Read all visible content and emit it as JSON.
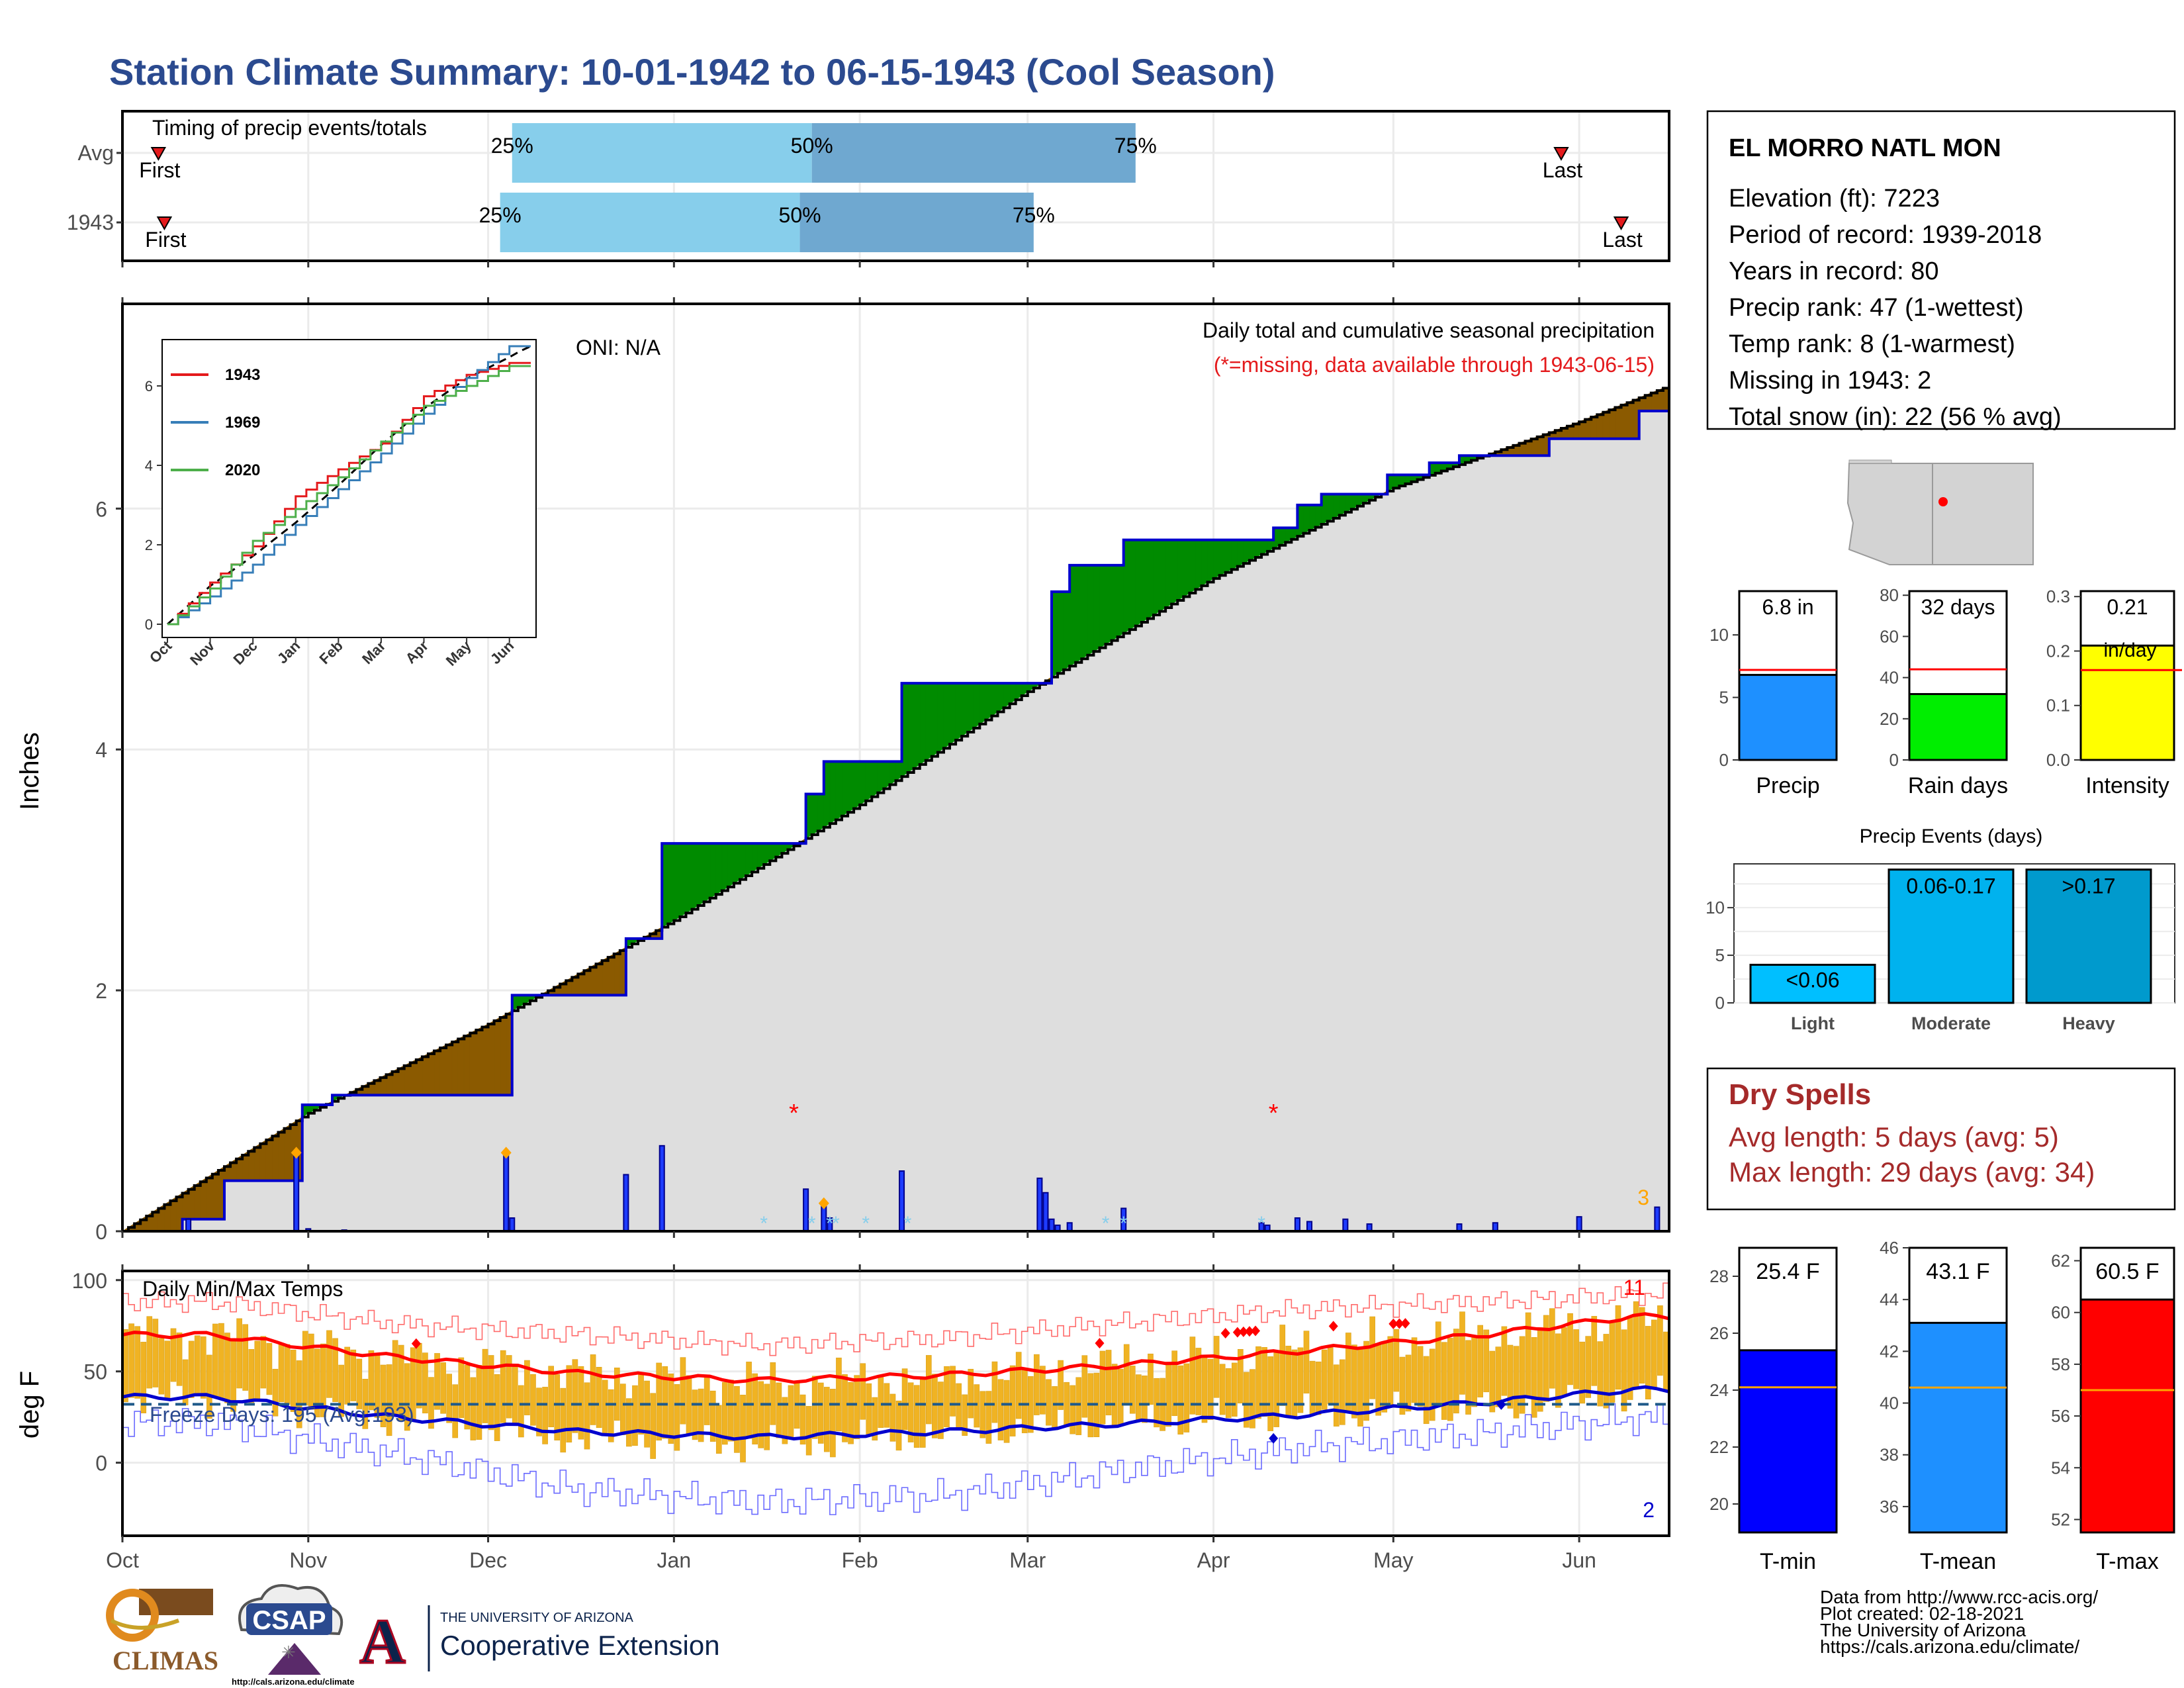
{
  "title": "Station Climate Summary: 10-01-1942 to 06-15-1943 (Cool Season)",
  "timing": {
    "title": "Timing of precip events/totals",
    "rows": [
      {
        "label": "Avg",
        "first_label": "First",
        "last_label": "Last",
        "first": 6,
        "last": 240,
        "p25_label": "25%",
        "p50_label": "50%",
        "p75_label": "75%",
        "p25": 65,
        "p50": 115,
        "p75": 169
      },
      {
        "label": "1943",
        "first_label": "First",
        "last_label": "Last",
        "first": 7,
        "last": 250,
        "p25_label": "25%",
        "p50_label": "50%",
        "p75_label": "75%",
        "p25": 63,
        "p50": 113,
        "p75": 152
      }
    ]
  },
  "precip": {
    "ylabel": "Inches",
    "y_ticks": [
      "0",
      "2",
      "4",
      "6"
    ],
    "caption": "Daily total and cumulative seasonal precipitation",
    "missing_note": "(*=missing, data available through 1943-06-15)",
    "oni": "ONI: N/A",
    "corner_value": "3"
  },
  "inset": {
    "y_ticks": [
      "0",
      "2",
      "4",
      "6"
    ],
    "x_ticks": [
      "Oct",
      "Nov",
      "Dec",
      "Jan",
      "Feb",
      "Mar",
      "Apr",
      "May",
      "Jun"
    ],
    "legend": [
      {
        "name": "1943",
        "color": "#e41a1c"
      },
      {
        "name": "1969",
        "color": "#377eb8"
      },
      {
        "name": "2020",
        "color": "#4daf4a"
      }
    ]
  },
  "temps": {
    "title": "Daily Min/Max Temps",
    "ylabel": "deg F",
    "y_ticks": [
      "0",
      "50",
      "100"
    ],
    "freeze_label": "Freeze Days: 195 (Avg:193)",
    "record_high_count": "11",
    "record_low_count": "2"
  },
  "x_months": [
    "Oct",
    "Nov",
    "Dec",
    "Jan",
    "Feb",
    "Mar",
    "Apr",
    "May",
    "Jun"
  ],
  "station": {
    "name": "EL MORRO NATL MON",
    "lines": [
      "Elevation (ft): 7223",
      "Period of record: 1939-2018",
      "Years in record: 80",
      "Precip rank: 47 (1-wettest)",
      "Temp rank: 8 (1-warmest)",
      "Missing in 1943: 2",
      "Total snow (in): 22 (56 % avg)"
    ]
  },
  "summary_bars": [
    {
      "name": "Precip",
      "value_label": "6.8 in",
      "value": 6.8,
      "avg": 7.2,
      "max": 13.5,
      "ticks": [
        "0",
        "5",
        "10"
      ],
      "color": "#1e90ff"
    },
    {
      "name": "Rain days",
      "value_label": "32 days",
      "value": 32,
      "avg": 44,
      "max": 82,
      "ticks": [
        "0",
        "20",
        "40",
        "60",
        "80"
      ],
      "color": "#00ee00"
    },
    {
      "name": "Intensity",
      "value_label": "0.21",
      "value_unit": "in/day",
      "value": 0.21,
      "avg": 0.165,
      "max": 0.31,
      "ticks": [
        "0.0",
        "0.1",
        "0.2",
        "0.3"
      ],
      "color": "#ffff00"
    }
  ],
  "events": {
    "title": "Precip Events (days)",
    "ticks": [
      "0",
      "5",
      "10"
    ],
    "categories": [
      "Light",
      "Moderate",
      "Heavy"
    ],
    "value_labels": [
      "<0.06",
      "0.06-0.17",
      ">0.17"
    ],
    "values": [
      4,
      14,
      14
    ],
    "colors": [
      "#00bfff",
      "#00b2ee",
      "#009acd"
    ]
  },
  "dry_spells": {
    "title": "Dry Spells",
    "avg_line": "Avg length: 5 days (avg: 5)",
    "max_line": "Max length: 29 days (avg: 34)"
  },
  "temp_bars": [
    {
      "name": "T-min",
      "value_label": "25.4 F",
      "value": 25.4,
      "avg": 24.1,
      "ymin": 19,
      "ymax": 29,
      "ticks": [
        "20",
        "22",
        "24",
        "26",
        "28"
      ],
      "color": "#0000ff"
    },
    {
      "name": "T-mean",
      "value_label": "43.1 F",
      "value": 43.1,
      "avg": 40.6,
      "ymin": 35,
      "ymax": 46,
      "ticks": [
        "36",
        "38",
        "40",
        "42",
        "44",
        "46"
      ],
      "color": "#1e90ff"
    },
    {
      "name": "T-max",
      "value_label": "60.5 F",
      "value": 60.5,
      "avg": 57.0,
      "ymin": 51.5,
      "ymax": 62.5,
      "ticks": [
        "52",
        "54",
        "56",
        "58",
        "60",
        "62"
      ],
      "color": "#ff0000"
    }
  ],
  "credits": [
    "Data from http://www.rcc-acis.org/",
    "Plot created: 02-18-2021",
    "The University of Arizona",
    "https://cals.arizona.edu/climate/"
  ],
  "logos": {
    "climas": "CLIMAS",
    "csap": "CSAP",
    "csap_url": "http://cals.arizona.edu/climate",
    "ua_small": "THE UNIVERSITY OF ARIZONA",
    "ua_big": "Cooperative Extension",
    "ua_letter": "A"
  },
  "chart_data": [
    {
      "type": "area",
      "title": "Daily total and cumulative seasonal precipitation",
      "ylabel": "Inches",
      "ylim": [
        0,
        7.7
      ],
      "x_unit": "date",
      "cumulative_observed": {
        "x": [
          "1942-10-01",
          "1942-10-11",
          "1942-10-18",
          "1942-10-29",
          "1942-10-31",
          "1942-11-05",
          "1942-12-04",
          "1942-12-05",
          "1942-12-24",
          "1942-12-30",
          "1943-01-20",
          "1943-01-23",
          "1943-01-26",
          "1943-02-01",
          "1943-02-08",
          "1943-03-02",
          "1943-03-05",
          "1943-03-08",
          "1943-03-17",
          "1943-04-09",
          "1943-04-11",
          "1943-04-15",
          "1943-04-19",
          "1943-04-30",
          "1943-05-07",
          "1943-05-12",
          "1943-05-27",
          "1943-06-11",
          "1943-06-15"
        ],
        "y": [
          0,
          0.1,
          0.42,
          0.42,
          1.05,
          1.13,
          1.13,
          1.96,
          2.43,
          3.22,
          3.22,
          3.63,
          3.9,
          3.9,
          4.55,
          4.55,
          5.31,
          5.53,
          5.74,
          5.74,
          5.84,
          6.03,
          6.12,
          6.28,
          6.38,
          6.44,
          6.58,
          6.81,
          6.81
        ]
      },
      "average_cumulative": {
        "x": [
          "1942-10-01",
          "1942-11-01",
          "1942-12-01",
          "1943-01-01",
          "1943-02-01",
          "1943-03-01",
          "1943-04-01",
          "1943-05-01",
          "1943-06-01",
          "1943-06-15"
        ],
        "y": [
          0,
          0.98,
          1.72,
          2.58,
          3.54,
          4.48,
          5.42,
          6.17,
          6.72,
          7.0
        ]
      },
      "daily_precip": {
        "x": [
          "1942-10-12",
          "1942-10-30",
          "1942-11-01",
          "1942-11-07",
          "1942-12-04",
          "1942-12-05",
          "1942-12-24",
          "1942-12-30",
          "1943-01-23",
          "1943-01-26",
          "1943-01-27",
          "1943-02-08",
          "1943-03-03",
          "1943-03-04",
          "1943-03-05",
          "1943-03-06",
          "1943-03-08",
          "1943-03-17",
          "1943-04-09",
          "1943-04-10",
          "1943-04-15",
          "1943-04-17",
          "1943-04-23",
          "1943-04-27",
          "1943-05-12",
          "1943-05-18",
          "1943-06-01",
          "1943-06-14"
        ],
        "y": [
          0.1,
          0.63,
          0.02,
          0.01,
          0.63,
          0.11,
          0.47,
          0.71,
          0.35,
          0.21,
          0.11,
          0.5,
          0.44,
          0.32,
          0.1,
          0.05,
          0.07,
          0.19,
          0.07,
          0.05,
          0.11,
          0.08,
          0.1,
          0.06,
          0.06,
          0.07,
          0.12,
          0.2
        ]
      },
      "missing_days": [
        "1943-01-21",
        "1943-04-11"
      ],
      "series": [
        {
          "name": "Observed cumulative",
          "color": "#0000cd"
        },
        {
          "name": "Average cumulative",
          "color": "#000000"
        }
      ]
    },
    {
      "type": "line",
      "title": "",
      "x_unit": "month",
      "categories": [
        "Oct",
        "Nov",
        "Dec",
        "Jan",
        "Feb",
        "Mar",
        "Apr",
        "May",
        "Jun"
      ],
      "ylim": [
        0,
        7
      ],
      "series": [
        {
          "name": "1943",
          "values": [
            0,
            1.05,
            1.96,
            3.22,
            3.9,
            4.55,
            5.74,
            6.28,
            6.58
          ]
        },
        {
          "name": "1969",
          "values": [
            0,
            0.7,
            1.5,
            2.5,
            3.4,
            4.3,
            5.3,
            6.2,
            7.0
          ]
        },
        {
          "name": "2020",
          "values": [
            0,
            0.9,
            2.1,
            2.9,
            3.7,
            4.6,
            5.5,
            6.0,
            6.5
          ]
        }
      ]
    },
    {
      "type": "bar",
      "title": "Daily Min/Max Temps",
      "ylabel": "deg F",
      "ylim": [
        -40,
        105
      ],
      "x_unit": "month (approx. mid-month values)",
      "categories": [
        "Oct",
        "Nov",
        "Dec",
        "Jan",
        "Feb",
        "Mar",
        "Apr",
        "May",
        "Jun"
      ],
      "series": [
        {
          "name": "Daily max (approx)",
          "values": [
            70,
            58,
            48,
            43,
            46,
            53,
            62,
            70,
            78
          ]
        },
        {
          "name": "Daily min (approx)",
          "values": [
            36,
            24,
            14,
            10,
            16,
            22,
            26,
            30,
            38
          ]
        },
        {
          "name": "Average max",
          "values": [
            70,
            58,
            49,
            45,
            48,
            53,
            61,
            70,
            80
          ]
        },
        {
          "name": "Average min",
          "values": [
            36,
            25,
            17,
            14,
            17,
            21,
            26,
            33,
            40
          ]
        },
        {
          "name": "Record high",
          "values": [
            88,
            76,
            70,
            64,
            68,
            76,
            84,
            88,
            92
          ]
        },
        {
          "name": "Record low",
          "values": [
            22,
            5,
            -15,
            -22,
            -18,
            -5,
            8,
            16,
            24
          ]
        }
      ],
      "freeze_threshold": 32
    },
    {
      "type": "bar",
      "categories": [
        "Precip",
        "Rain days",
        "Intensity"
      ],
      "values": [
        6.8,
        32,
        0.21
      ],
      "averages": [
        7.2,
        44,
        0.165
      ]
    },
    {
      "type": "bar",
      "title": "Precip Events (days)",
      "categories": [
        "Light",
        "Moderate",
        "Heavy"
      ],
      "values": [
        4,
        14,
        14
      ]
    },
    {
      "type": "bar",
      "categories": [
        "T-min",
        "T-mean",
        "T-max"
      ],
      "values": [
        25.4,
        43.1,
        60.5
      ],
      "averages": [
        24.1,
        40.6,
        57.0
      ]
    }
  ]
}
